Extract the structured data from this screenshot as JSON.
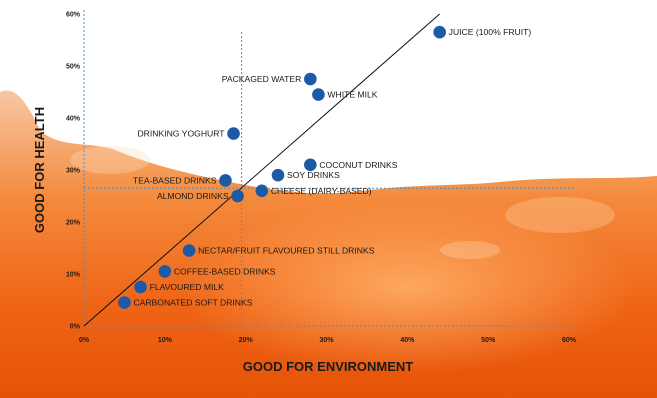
{
  "chart_data": {
    "type": "scatter",
    "title": "",
    "xlabel": "GOOD FOR ENVIRONMENT",
    "ylabel": "GOOD FOR HEALTH",
    "xlim": [
      0,
      60
    ],
    "ylim": [
      0,
      60
    ],
    "x_ticks": [
      "0%",
      "10%",
      "20%",
      "30%",
      "40%",
      "50%",
      "60%"
    ],
    "y_ticks": [
      "0%",
      "10%",
      "20%",
      "30%",
      "40%",
      "50%",
      "60%"
    ],
    "grid": false,
    "legend": "none",
    "trend_line": {
      "from": [
        0,
        0
      ],
      "to": [
        44,
        60
      ]
    },
    "reference_lines": {
      "x": 19.5,
      "y": 26.5
    },
    "marker_color": "#1d5aa6",
    "points": [
      {
        "name": "JUICE (100% FRUIT)",
        "x": 44,
        "y": 56.5,
        "label_side": "right"
      },
      {
        "name": "PACKAGED WATER",
        "x": 28,
        "y": 47.5,
        "label_side": "left"
      },
      {
        "name": "WHITE MILK",
        "x": 29,
        "y": 44.5,
        "label_side": "right"
      },
      {
        "name": "DRINKING YOGHURT",
        "x": 18.5,
        "y": 37,
        "label_side": "left"
      },
      {
        "name": "COCONUT DRINKS",
        "x": 28,
        "y": 31,
        "label_side": "right"
      },
      {
        "name": "TEA-BASED DRINKS",
        "x": 17.5,
        "y": 28,
        "label_side": "left"
      },
      {
        "name": "SOY DRINKS",
        "x": 24,
        "y": 29,
        "label_side": "right"
      },
      {
        "name": "ALMOND DRINKS",
        "x": 19,
        "y": 25,
        "label_side": "left"
      },
      {
        "name": "CHEESE (DAIRY-BASED)",
        "x": 22,
        "y": 26,
        "label_side": "right"
      },
      {
        "name": "NECTAR/FRUIT FLAVOURED STILL DRINKS",
        "x": 13,
        "y": 14.5,
        "label_side": "right"
      },
      {
        "name": "COFFEE-BASED DRINKS",
        "x": 10,
        "y": 10.5,
        "label_side": "right"
      },
      {
        "name": "FLAVOURED MILK",
        "x": 7,
        "y": 7.5,
        "label_side": "right"
      },
      {
        "name": "CARBONATED SOFT DRINKS",
        "x": 5,
        "y": 4.5,
        "label_side": "right"
      }
    ]
  }
}
